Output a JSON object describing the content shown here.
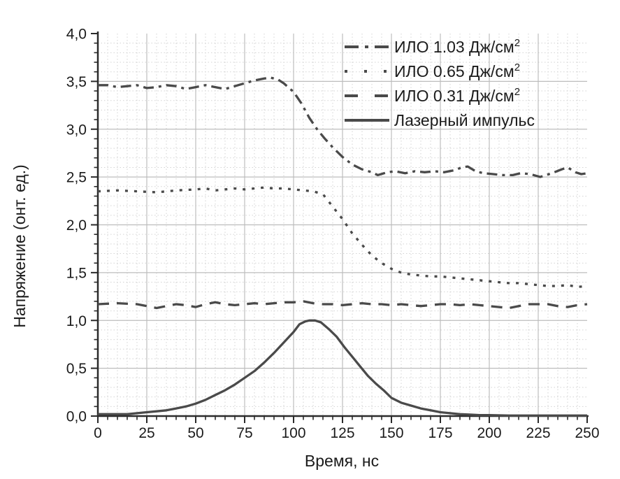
{
  "figure": {
    "background": "#ffffff",
    "axis_color": "#2b2b2b",
    "text_color": "#1b1b1b",
    "grid_major_color": "#bdbdbd",
    "grid_minor_color": "#d3d3d3",
    "curve_color": "#4a4a4a"
  },
  "chart_data": {
    "type": "line",
    "title": "",
    "xlabel": "Время, нс",
    "ylabel": "Напряжение (онт. ед.)",
    "xlim": [
      0,
      250
    ],
    "ylim": [
      0.0,
      4.0
    ],
    "x_ticks": [
      0,
      25,
      50,
      75,
      100,
      125,
      150,
      175,
      200,
      225,
      250
    ],
    "x_tick_labels": [
      "0",
      "25",
      "50",
      "75",
      "100",
      "125",
      "150",
      "175",
      "200",
      "225",
      "250"
    ],
    "y_ticks": [
      0,
      0.5,
      1.0,
      1.5,
      2.0,
      2.5,
      3.0,
      3.5,
      4.0
    ],
    "y_tick_labels": [
      "0,0",
      "0,5",
      "1,0",
      "1,5",
      "2,0",
      "2,5",
      "3,0",
      "3,5",
      "4,0"
    ],
    "x_minor_step": 5,
    "y_minor_step": 0.1,
    "grid": "major solid, minor dotted",
    "legend_position": "top-right inside, no frame",
    "series": [
      {
        "label": "ИЛО 1.03 Дж/см",
        "label_sup": "2",
        "style": "dash-dot",
        "points": [
          [
            0,
            3.46
          ],
          [
            5,
            3.46
          ],
          [
            10,
            3.44
          ],
          [
            15,
            3.45
          ],
          [
            20,
            3.46
          ],
          [
            25,
            3.43
          ],
          [
            30,
            3.44
          ],
          [
            35,
            3.46
          ],
          [
            40,
            3.45
          ],
          [
            45,
            3.42
          ],
          [
            50,
            3.44
          ],
          [
            55,
            3.46
          ],
          [
            60,
            3.44
          ],
          [
            65,
            3.42
          ],
          [
            70,
            3.45
          ],
          [
            75,
            3.48
          ],
          [
            80,
            3.51
          ],
          [
            85,
            3.53
          ],
          [
            88,
            3.54
          ],
          [
            92,
            3.52
          ],
          [
            95,
            3.48
          ],
          [
            100,
            3.39
          ],
          [
            104,
            3.27
          ],
          [
            108,
            3.12
          ],
          [
            112,
            3.0
          ],
          [
            116,
            2.9
          ],
          [
            120,
            2.81
          ],
          [
            125,
            2.71
          ],
          [
            130,
            2.63
          ],
          [
            135,
            2.58
          ],
          [
            140,
            2.55
          ],
          [
            143,
            2.52
          ],
          [
            148,
            2.55
          ],
          [
            152,
            2.56
          ],
          [
            157,
            2.54
          ],
          [
            162,
            2.56
          ],
          [
            167,
            2.55
          ],
          [
            172,
            2.56
          ],
          [
            177,
            2.55
          ],
          [
            182,
            2.57
          ],
          [
            186,
            2.6
          ],
          [
            189,
            2.61
          ],
          [
            193,
            2.56
          ],
          [
            197,
            2.54
          ],
          [
            202,
            2.53
          ],
          [
            207,
            2.52
          ],
          [
            212,
            2.52
          ],
          [
            216,
            2.54
          ],
          [
            221,
            2.53
          ],
          [
            226,
            2.5
          ],
          [
            232,
            2.54
          ],
          [
            237,
            2.58
          ],
          [
            240,
            2.6
          ],
          [
            244,
            2.55
          ],
          [
            247,
            2.53
          ],
          [
            250,
            2.54
          ]
        ]
      },
      {
        "label": "ИЛО 0.65 Дж/см",
        "label_sup": "2",
        "style": "dotted",
        "points": [
          [
            0,
            2.35
          ],
          [
            10,
            2.36
          ],
          [
            20,
            2.35
          ],
          [
            30,
            2.34
          ],
          [
            40,
            2.36
          ],
          [
            50,
            2.37
          ],
          [
            55,
            2.38
          ],
          [
            60,
            2.36
          ],
          [
            65,
            2.37
          ],
          [
            70,
            2.38
          ],
          [
            75,
            2.37
          ],
          [
            80,
            2.38
          ],
          [
            85,
            2.39
          ],
          [
            90,
            2.38
          ],
          [
            95,
            2.38
          ],
          [
            100,
            2.37
          ],
          [
            105,
            2.36
          ],
          [
            110,
            2.35
          ],
          [
            115,
            2.32
          ],
          [
            120,
            2.19
          ],
          [
            125,
            2.06
          ],
          [
            130,
            1.91
          ],
          [
            135,
            1.79
          ],
          [
            140,
            1.68
          ],
          [
            145,
            1.6
          ],
          [
            150,
            1.54
          ],
          [
            155,
            1.5
          ],
          [
            160,
            1.48
          ],
          [
            165,
            1.47
          ],
          [
            170,
            1.46
          ],
          [
            175,
            1.46
          ],
          [
            180,
            1.45
          ],
          [
            185,
            1.44
          ],
          [
            190,
            1.43
          ],
          [
            195,
            1.42
          ],
          [
            200,
            1.41
          ],
          [
            205,
            1.4
          ],
          [
            210,
            1.39
          ],
          [
            215,
            1.39
          ],
          [
            220,
            1.38
          ],
          [
            225,
            1.37
          ],
          [
            230,
            1.36
          ],
          [
            235,
            1.36
          ],
          [
            240,
            1.37
          ],
          [
            245,
            1.35
          ],
          [
            250,
            1.36
          ]
        ]
      },
      {
        "label": "ИЛО 0.31 Дж/см",
        "label_sup": "2",
        "style": "dashed",
        "points": [
          [
            0,
            1.17
          ],
          [
            10,
            1.18
          ],
          [
            20,
            1.17
          ],
          [
            25,
            1.15
          ],
          [
            30,
            1.13
          ],
          [
            35,
            1.15
          ],
          [
            40,
            1.17
          ],
          [
            45,
            1.16
          ],
          [
            50,
            1.14
          ],
          [
            55,
            1.17
          ],
          [
            60,
            1.19
          ],
          [
            65,
            1.17
          ],
          [
            70,
            1.16
          ],
          [
            75,
            1.17
          ],
          [
            80,
            1.18
          ],
          [
            85,
            1.17
          ],
          [
            90,
            1.18
          ],
          [
            95,
            1.19
          ],
          [
            100,
            1.19
          ],
          [
            105,
            1.2
          ],
          [
            110,
            1.18
          ],
          [
            115,
            1.17
          ],
          [
            120,
            1.17
          ],
          [
            125,
            1.16
          ],
          [
            130,
            1.17
          ],
          [
            135,
            1.18
          ],
          [
            140,
            1.17
          ],
          [
            145,
            1.17
          ],
          [
            150,
            1.16
          ],
          [
            155,
            1.17
          ],
          [
            160,
            1.16
          ],
          [
            165,
            1.15
          ],
          [
            170,
            1.16
          ],
          [
            175,
            1.17
          ],
          [
            180,
            1.17
          ],
          [
            185,
            1.16
          ],
          [
            190,
            1.17
          ],
          [
            195,
            1.16
          ],
          [
            200,
            1.15
          ],
          [
            205,
            1.14
          ],
          [
            210,
            1.13
          ],
          [
            215,
            1.15
          ],
          [
            220,
            1.17
          ],
          [
            225,
            1.17
          ],
          [
            230,
            1.17
          ],
          [
            235,
            1.15
          ],
          [
            240,
            1.14
          ],
          [
            245,
            1.16
          ],
          [
            250,
            1.17
          ]
        ]
      },
      {
        "label": "Лазерный импульс",
        "label_sup": "",
        "style": "solid",
        "points": [
          [
            0,
            0.02
          ],
          [
            10,
            0.02
          ],
          [
            15,
            0.02
          ],
          [
            20,
            0.03
          ],
          [
            25,
            0.04
          ],
          [
            30,
            0.05
          ],
          [
            35,
            0.06
          ],
          [
            40,
            0.08
          ],
          [
            45,
            0.1
          ],
          [
            50,
            0.13
          ],
          [
            55,
            0.17
          ],
          [
            60,
            0.22
          ],
          [
            65,
            0.27
          ],
          [
            70,
            0.33
          ],
          [
            75,
            0.4
          ],
          [
            80,
            0.47
          ],
          [
            85,
            0.56
          ],
          [
            90,
            0.66
          ],
          [
            95,
            0.77
          ],
          [
            100,
            0.88
          ],
          [
            103,
            0.96
          ],
          [
            106,
            0.99
          ],
          [
            108,
            1.0
          ],
          [
            111,
            1.0
          ],
          [
            114,
            0.98
          ],
          [
            118,
            0.91
          ],
          [
            122,
            0.83
          ],
          [
            126,
            0.72
          ],
          [
            130,
            0.62
          ],
          [
            134,
            0.52
          ],
          [
            138,
            0.42
          ],
          [
            142,
            0.34
          ],
          [
            146,
            0.27
          ],
          [
            150,
            0.19
          ],
          [
            155,
            0.14
          ],
          [
            160,
            0.11
          ],
          [
            165,
            0.08
          ],
          [
            170,
            0.06
          ],
          [
            175,
            0.04
          ],
          [
            180,
            0.03
          ],
          [
            185,
            0.02
          ],
          [
            190,
            0.015
          ],
          [
            195,
            0.01
          ],
          [
            200,
            0.01
          ],
          [
            210,
            0.005
          ],
          [
            220,
            0.005
          ],
          [
            230,
            0.005
          ],
          [
            240,
            0.005
          ],
          [
            250,
            0.005
          ]
        ]
      }
    ]
  }
}
